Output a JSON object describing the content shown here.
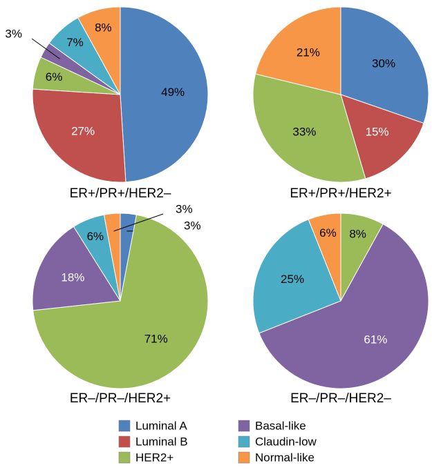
{
  "chart_data": [
    {
      "type": "pie",
      "title": "ER+/PR+/HER2–",
      "categories": [
        "Luminal A",
        "Luminal B",
        "HER2+",
        "Basal-like",
        "Claudin-low",
        "Normal-like"
      ],
      "values": [
        49,
        27,
        6,
        3,
        7,
        8
      ],
      "value_labels": [
        "49%",
        "27%",
        "6%",
        "3%",
        "7%",
        "8%"
      ]
    },
    {
      "type": "pie",
      "title": "ER+/PR+/HER2+",
      "categories": [
        "Luminal A",
        "Luminal B",
        "HER2+",
        "Normal-like"
      ],
      "values": [
        30,
        15,
        33,
        21
      ],
      "value_labels": [
        "30%",
        "15%",
        "33%",
        "21%"
      ]
    },
    {
      "type": "pie",
      "title": "ER–/PR–/HER2+",
      "categories": [
        "Luminal A",
        "HER2+",
        "Basal-like",
        "Claudin-low",
        "Normal-like"
      ],
      "values": [
        3,
        71,
        18,
        6,
        3
      ],
      "value_labels": [
        "3%",
        "71%",
        "18%",
        "6%",
        "3%"
      ]
    },
    {
      "type": "pie",
      "title": "ER–/PR–/HER2–",
      "categories": [
        "HER2+",
        "Basal-like",
        "Claudin-low",
        "Normal-like"
      ],
      "values": [
        8,
        61,
        25,
        6
      ],
      "value_labels": [
        "8%",
        "61%",
        "25%",
        "6%"
      ]
    }
  ],
  "legend": [
    {
      "name": "Luminal A",
      "color": "#4f81bd"
    },
    {
      "name": "Luminal B",
      "color": "#c0504d"
    },
    {
      "name": "HER2+",
      "color": "#9bbb59"
    },
    {
      "name": "Basal-like",
      "color": "#8064a2"
    },
    {
      "name": "Claudin-low",
      "color": "#4bacc6"
    },
    {
      "name": "Normal-like",
      "color": "#f79646"
    }
  ]
}
